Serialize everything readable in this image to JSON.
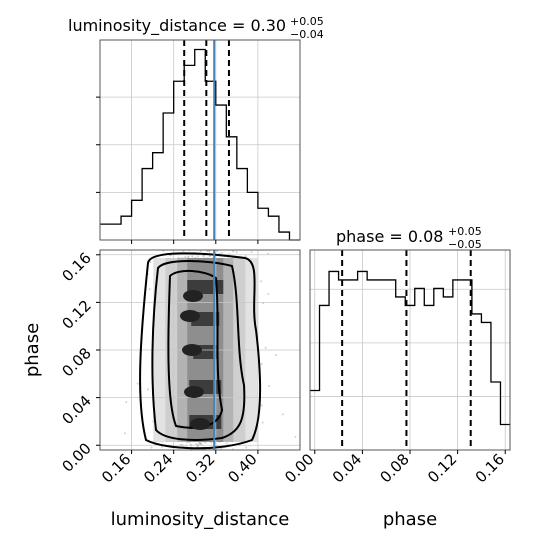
{
  "chart_data": [
    {
      "type": "histogram",
      "panel": "luminosity_distance marginal",
      "title": {
        "param": "luminosity_distance",
        "median": "0.30",
        "plus": "+0.05",
        "minus": "−0.04"
      },
      "bins": [
        0.1,
        0.12,
        0.14,
        0.16,
        0.18,
        0.2,
        0.22,
        0.24,
        0.26,
        0.28,
        0.3,
        0.32,
        0.34,
        0.36,
        0.38,
        0.4,
        0.42,
        0.44,
        0.46,
        0.48
      ],
      "counts": [
        2,
        2,
        3,
        5,
        9,
        11,
        16,
        20,
        22,
        24,
        20,
        17,
        13,
        9,
        6,
        4,
        3,
        1,
        0
      ],
      "quantiles": [
        0.26,
        0.302,
        0.345
      ],
      "truth": 0.317,
      "xlim": [
        0.1,
        0.48
      ],
      "grid": true
    },
    {
      "type": "histogram",
      "panel": "phase marginal",
      "title": {
        "param": "phase",
        "median": "0.08",
        "plus": "+0.05",
        "minus": "−0.05"
      },
      "bins": [
        -0.004,
        0.004,
        0.012,
        0.02,
        0.028,
        0.036,
        0.044,
        0.052,
        0.06,
        0.068,
        0.076,
        0.084,
        0.092,
        0.1,
        0.108,
        0.116,
        0.124,
        0.132,
        0.14,
        0.148,
        0.156,
        0.164
      ],
      "counts": [
        7,
        17,
        21,
        20,
        20,
        21,
        20,
        20,
        20,
        18,
        17,
        19,
        17,
        19,
        18,
        20,
        20,
        16,
        15,
        8,
        3
      ],
      "quantiles": [
        0.023,
        0.077,
        0.131
      ],
      "xlim": [
        -0.004,
        0.164
      ],
      "xticks": [
        "0.00",
        "0.04",
        "0.08",
        "0.12",
        "0.16"
      ],
      "xlabel": "phase",
      "grid": true
    },
    {
      "type": "heatmap",
      "panel": "2D posterior luminosity_distance vs phase",
      "x": "luminosity_distance",
      "y": "phase",
      "xlim": [
        0.1,
        0.48
      ],
      "ylim": [
        -0.004,
        0.164
      ],
      "xticks": [
        "0.16",
        "0.24",
        "0.32",
        "0.40"
      ],
      "yticks": [
        "0.00",
        "0.04",
        "0.08",
        "0.12",
        "0.16"
      ],
      "xlabel": "luminosity_distance",
      "ylabel": "phase",
      "truth_x": 0.317,
      "density_center": [
        0.3,
        0.08
      ],
      "grid": true
    }
  ]
}
